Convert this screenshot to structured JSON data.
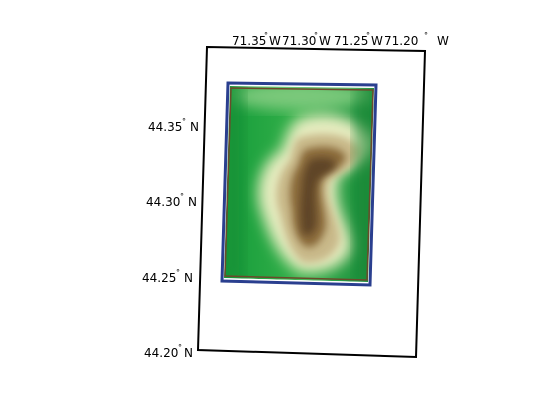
{
  "map": {
    "projection_frame": "rotated-rectangle",
    "colormap": "dem-green-tan-white",
    "data_border_colors": [
      "#2a3f8f",
      "#6b4a2a"
    ],
    "lon_labels": [
      {
        "value": "71.35",
        "suffix": "W"
      },
      {
        "value": "71.30",
        "suffix": "W"
      },
      {
        "value": "71.25",
        "suffix": "W"
      },
      {
        "value": "71.20",
        "suffix": "W"
      }
    ],
    "lat_labels": [
      {
        "value": "44.35",
        "suffix": "N"
      },
      {
        "value": "44.30",
        "suffix": "N"
      },
      {
        "value": "44.25",
        "suffix": "N"
      },
      {
        "value": "44.20",
        "suffix": "N"
      }
    ],
    "degree_symbol": "°"
  }
}
